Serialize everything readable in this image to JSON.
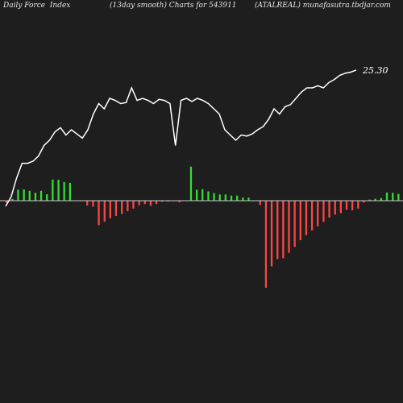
{
  "header": {
    "left": "Daily Force  Index",
    "center": "(13day smooth) Charts for 543911",
    "right": "(ATALREAL) munafasutra.tbdjar.com"
  },
  "chart_data": {
    "type": "line+bar",
    "last_value_label": "25.30",
    "colors": {
      "background": "#1e1e1e",
      "line": "#ffffff",
      "positive": "#33dd33",
      "negative": "#ff4444",
      "zero_line": "#cccccc"
    },
    "line": [
      -3,
      6,
      24,
      38,
      38,
      40,
      45,
      55,
      60,
      68,
      72,
      65,
      70,
      66,
      62,
      70,
      85,
      95,
      90,
      100,
      98,
      95,
      96,
      110,
      98,
      100,
      98,
      95,
      99,
      98,
      95,
      55,
      98,
      100,
      97,
      100,
      98,
      95,
      90,
      85,
      70,
      65,
      60,
      65,
      64,
      66,
      70,
      73,
      80,
      90,
      85,
      92,
      94,
      100,
      106,
      110,
      110,
      112,
      110,
      115,
      118,
      122,
      124,
      125,
      127
    ],
    "force": [
      -0.8,
      0.6,
      3.9,
      4.0,
      3.5,
      2.8,
      3.5,
      2.3,
      7.5,
      7.4,
      6.6,
      6.3,
      0,
      0,
      -1.7,
      -2.1,
      -8.7,
      -7.4,
      -6.2,
      -5.4,
      -4.7,
      -3.7,
      -2.8,
      -1.6,
      -1.2,
      -1.8,
      -1.2,
      -0.4,
      -0.3,
      -0.1,
      -0.6,
      0,
      12.1,
      3.9,
      4.1,
      3.3,
      2.7,
      2.2,
      2.2,
      1.8,
      1.8,
      1.1,
      1.1,
      0,
      -1.5,
      -30.9,
      -23.3,
      -20.7,
      -20.4,
      -18.5,
      -16.4,
      -14.0,
      -12.2,
      -10.5,
      -9.1,
      -7.5,
      -6.0,
      -4.9,
      -4.4,
      -3.2,
      -3.4,
      -2.8,
      -0.7,
      0.4,
      0.7,
      0.9,
      2.9,
      2.8,
      2.4,
      2.3,
      1.7,
      1.1
    ]
  }
}
